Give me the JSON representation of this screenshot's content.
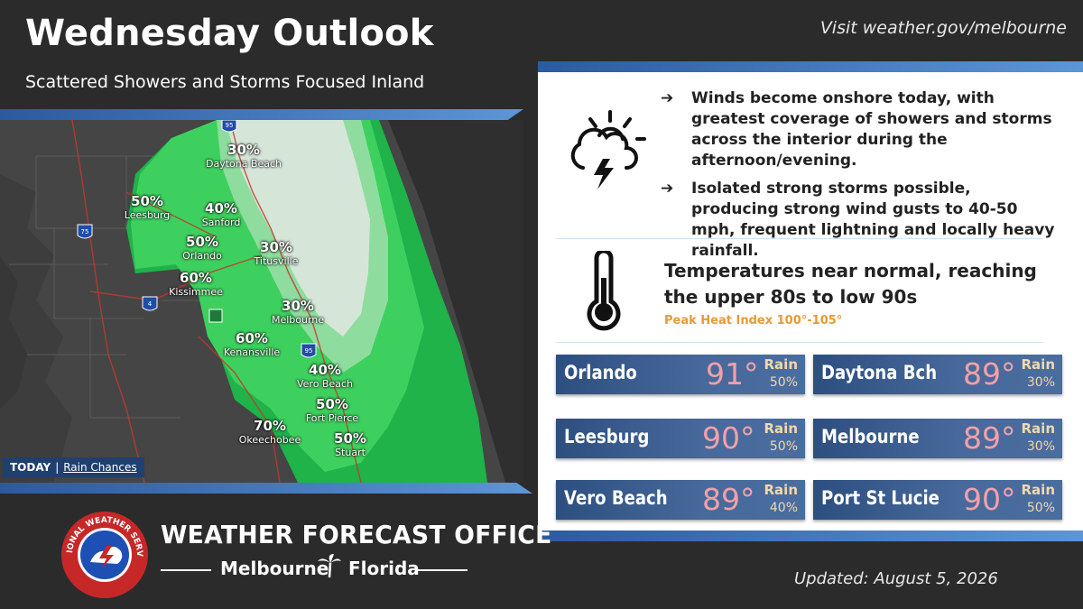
{
  "header": {
    "title": "Wednesday Outlook",
    "subtitle": "Scattered Showers and Storms Focused Inland",
    "site_link": "Visit weather.gov/melbourne"
  },
  "map": {
    "labels": [
      {
        "pct": "30%",
        "city": "Daytona Beach"
      },
      {
        "pct": "50%",
        "city": "Leesburg"
      },
      {
        "pct": "40%",
        "city": "Sanford"
      },
      {
        "pct": "50%",
        "city": "Orlando"
      },
      {
        "pct": "30%",
        "city": "Titusville"
      },
      {
        "pct": "60%",
        "city": "Kissimmee"
      },
      {
        "pct": "30%",
        "city": "Melbourne"
      },
      {
        "pct": "60%",
        "city": "Kenansville"
      },
      {
        "pct": "40%",
        "city": "Vero Beach"
      },
      {
        "pct": "50%",
        "city": "Fort Pierce"
      },
      {
        "pct": "70%",
        "city": "Okeechobee"
      },
      {
        "pct": "50%",
        "city": "Stuart"
      }
    ],
    "shields": [
      "95",
      "75",
      "4",
      "95"
    ],
    "caption_today": "TODAY",
    "caption_sep": "|",
    "caption_link": "Rain Chances"
  },
  "panel": {
    "bullets": [
      "Winds become onshore today, with greatest coverage of showers and storms across the interior during the afternoon/evening.",
      "Isolated strong storms possible, producing strong wind gusts to 40-50 mph, frequent lightning and locally heavy rainfall."
    ],
    "arrow": "➔",
    "icon_weather": "sun-cloud-lightning-icon",
    "icon_temp": "thermometer-icon",
    "temp_text": "Temperatures near normal, reaching the upper 80s to low 90s",
    "heat_index": "Peak Heat Index 100°-105°",
    "rain_label": "Rain",
    "cities": [
      {
        "name": "Orlando",
        "temp": "91°",
        "rain": "50%"
      },
      {
        "name": "Daytona Bch",
        "temp": "89°",
        "rain": "30%"
      },
      {
        "name": "Leesburg",
        "temp": "90°",
        "rain": "50%"
      },
      {
        "name": "Melbourne",
        "temp": "89°",
        "rain": "30%"
      },
      {
        "name": "Vero Beach",
        "temp": "89°",
        "rain": "40%"
      },
      {
        "name": "Port St Lucie",
        "temp": "90°",
        "rain": "50%"
      }
    ]
  },
  "footer": {
    "office_title": "WEATHER FORECAST OFFICE",
    "office_city": "Melbourne",
    "office_state": "Florida",
    "logo_text": "NATIONAL WEATHER SERVICE",
    "updated": "Updated: August 5, 2026"
  },
  "colors": {
    "background": "#2b2b2b",
    "band": "#3f78c2",
    "rain_light": "#d5e6d8",
    "rain_mid": "#8fdc9f",
    "rain_green": "#3ed05e",
    "rain_dark": "#1fb34a",
    "card": "#3a5d90",
    "temp_text": "#f2a0a8",
    "heat_index": "#e79a35"
  }
}
